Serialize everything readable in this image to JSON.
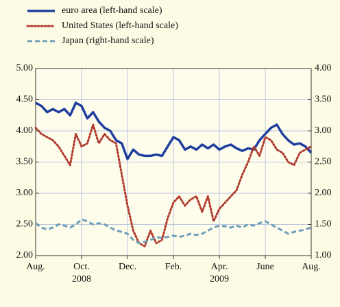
{
  "chart_data": {
    "type": "line",
    "x": [
      0,
      0.25,
      0.5,
      0.75,
      1,
      1.25,
      1.5,
      1.75,
      2,
      2.25,
      2.5,
      2.75,
      3,
      3.25,
      3.5,
      3.75,
      4,
      4.25,
      4.5,
      4.75,
      5,
      5.25,
      5.5,
      5.75,
      6,
      6.25,
      6.5,
      6.75,
      7,
      7.25,
      7.5,
      7.75,
      8,
      8.25,
      8.5,
      8.75,
      9,
      9.25,
      9.5,
      9.75,
      10,
      10.25,
      10.5,
      10.75,
      11,
      11.25,
      11.5,
      11.75,
      12
    ],
    "series": [
      {
        "name": "euro area (left-hand scale)",
        "color": "#1f3f9e",
        "style": "solid",
        "values": [
          4.45,
          4.4,
          4.3,
          4.35,
          4.3,
          4.35,
          4.25,
          4.45,
          4.4,
          4.2,
          4.3,
          4.15,
          4.05,
          4.0,
          3.85,
          3.8,
          3.55,
          3.7,
          3.62,
          3.6,
          3.6,
          3.62,
          3.6,
          3.75,
          3.9,
          3.85,
          3.7,
          3.75,
          3.7,
          3.78,
          3.72,
          3.78,
          3.7,
          3.75,
          3.78,
          3.72,
          3.68,
          3.72,
          3.7,
          3.85,
          3.95,
          4.05,
          4.1,
          3.95,
          3.85,
          3.78,
          3.8,
          3.75,
          3.65
        ]
      },
      {
        "name": "United States (left-hand scale)",
        "color": "#b03a2e",
        "style": "dotted",
        "values": [
          4.05,
          3.95,
          3.9,
          3.85,
          3.75,
          3.6,
          3.45,
          3.95,
          3.75,
          3.8,
          4.1,
          3.8,
          3.95,
          3.85,
          3.8,
          3.3,
          2.8,
          2.4,
          2.2,
          2.15,
          2.4,
          2.2,
          2.25,
          2.6,
          2.85,
          2.95,
          2.8,
          2.9,
          2.95,
          2.7,
          2.95,
          2.55,
          2.75,
          2.85,
          2.95,
          3.05,
          3.3,
          3.5,
          3.75,
          3.6,
          3.9,
          3.85,
          3.7,
          3.65,
          3.5,
          3.45,
          3.65,
          3.7,
          3.75
        ]
      },
      {
        "name": "Japan (right-hand scale)",
        "color": "#6f9fb8",
        "style": "dashed",
        "axis": "y2",
        "values": [
          1.52,
          1.45,
          1.42,
          1.45,
          1.5,
          1.48,
          1.45,
          1.5,
          1.58,
          1.55,
          1.5,
          1.52,
          1.5,
          1.45,
          1.4,
          1.38,
          1.35,
          1.25,
          1.2,
          1.22,
          1.25,
          1.3,
          1.28,
          1.3,
          1.32,
          1.3,
          1.32,
          1.35,
          1.33,
          1.35,
          1.4,
          1.45,
          1.48,
          1.47,
          1.45,
          1.48,
          1.45,
          1.5,
          1.48,
          1.52,
          1.55,
          1.5,
          1.45,
          1.4,
          1.35,
          1.38,
          1.4,
          1.42,
          1.45
        ]
      }
    ],
    "xlim": [
      0,
      12
    ],
    "xticks": [
      {
        "value": 0,
        "label": "Aug."
      },
      {
        "value": 2,
        "label": "Oct."
      },
      {
        "value": 4,
        "label": "Dec."
      },
      {
        "value": 6,
        "label": "Feb."
      },
      {
        "value": 8,
        "label": "Apr."
      },
      {
        "value": 10,
        "label": "June"
      },
      {
        "value": 12,
        "label": "Aug."
      }
    ],
    "year_labels": [
      {
        "value": 2,
        "label": "2008"
      },
      {
        "value": 8,
        "label": "2009"
      }
    ],
    "ylim": [
      2,
      5
    ],
    "yticks": [
      {
        "value": 2,
        "label": "2.00"
      },
      {
        "value": 2.5,
        "label": "2.50"
      },
      {
        "value": 3,
        "label": "3.00"
      },
      {
        "value": 3.5,
        "label": "3.50"
      },
      {
        "value": 4,
        "label": "4.00"
      },
      {
        "value": 4.5,
        "label": "4.50"
      },
      {
        "value": 5,
        "label": "5.00"
      }
    ],
    "y2lim": [
      1,
      4
    ],
    "y2ticks": [
      {
        "value": 1,
        "label": "1.00"
      },
      {
        "value": 1.5,
        "label": "1.50"
      },
      {
        "value": 2,
        "label": "2.00"
      },
      {
        "value": 2.5,
        "label": "2.50"
      },
      {
        "value": 3,
        "label": "3.00"
      },
      {
        "value": 3.5,
        "label": "3.50"
      },
      {
        "value": 4,
        "label": "4.00"
      }
    ],
    "grid": true
  }
}
